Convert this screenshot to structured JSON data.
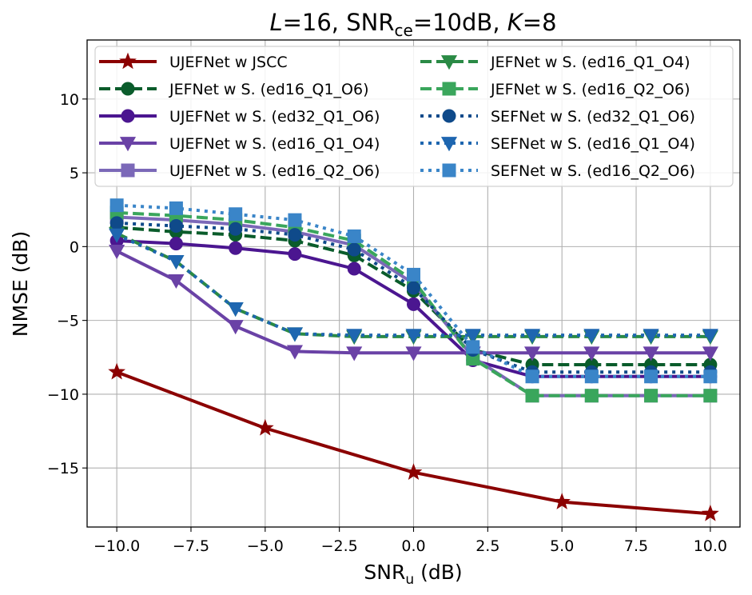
{
  "chart_data": {
    "type": "line",
    "title_parts": {
      "a": "L",
      "b": "=16, SNR",
      "sub": "ce",
      "c": "=10dB, ",
      "d": "K",
      "e": "=8"
    },
    "xlabel": "SNR",
    "xlabel_sub": "u",
    "xlabel_unit": " (dB)",
    "ylabel": "NMSE (dB)",
    "xlim": [
      -11,
      11
    ],
    "ylim": [
      -19,
      14
    ],
    "xticks": [
      -10,
      -7.5,
      -5,
      -2.5,
      0,
      2.5,
      5,
      7.5,
      10
    ],
    "xtick_labels": [
      "−10.0",
      "−7.5",
      "−5.0",
      "−2.5",
      "0.0",
      "2.5",
      "5.0",
      "7.5",
      "10.0"
    ],
    "yticks": [
      -15,
      -10,
      -5,
      0,
      5,
      10
    ],
    "ytick_labels": [
      "−15",
      "−10",
      "−5",
      "0",
      "5",
      "10"
    ],
    "grid": true,
    "legend_placement": "top, two columns",
    "series": [
      {
        "name": "UJEFNet w JSCC",
        "color": "#8b0000",
        "dash": "solid",
        "marker": "star",
        "x": [
          -10,
          -5,
          0,
          5,
          10
        ],
        "y": [
          -8.5,
          -12.3,
          -15.3,
          -17.3,
          -18.1
        ]
      },
      {
        "name": "JEFNet w S. (ed16_Q1_O6)",
        "color": "#0a5c2b",
        "dash": "dashed",
        "marker": "circle",
        "x": [
          -10,
          -8,
          -6,
          -4,
          -2,
          0,
          2,
          4,
          6,
          8,
          10
        ],
        "y": [
          1.3,
          1.0,
          0.8,
          0.4,
          -0.6,
          -3.0,
          -7.0,
          -8.0,
          -8.0,
          -8.0,
          -8.0
        ]
      },
      {
        "name": "UJEFNet w S. (ed32_Q1_O6)",
        "color": "#4b1690",
        "dash": "solid",
        "marker": "circle",
        "x": [
          -10,
          -8,
          -6,
          -4,
          -2,
          0,
          2,
          4,
          6,
          8,
          10
        ],
        "y": [
          0.4,
          0.2,
          -0.1,
          -0.5,
          -1.5,
          -3.9,
          -7.7,
          -8.8,
          -8.8,
          -8.8,
          -8.8
        ]
      },
      {
        "name": "UJEFNet w S. (ed16_Q1_O4)",
        "color": "#6a42a6",
        "dash": "solid",
        "marker": "triangle-down",
        "x": [
          -10,
          -8,
          -6,
          -4,
          -2,
          0,
          2,
          4,
          6,
          8,
          10
        ],
        "y": [
          -0.3,
          -2.3,
          -5.4,
          -7.1,
          -7.2,
          -7.2,
          -7.2,
          -7.2,
          -7.2,
          -7.2,
          -7.2
        ]
      },
      {
        "name": "UJEFNet w S. (ed16_Q2_O6)",
        "color": "#7b68b8",
        "dash": "solid",
        "marker": "square",
        "x": [
          -10,
          -8,
          -6,
          -4,
          -2,
          0,
          2,
          4,
          6,
          8,
          10
        ],
        "y": [
          2.0,
          1.8,
          1.5,
          1.0,
          0.1,
          -2.5,
          -7.5,
          -10.1,
          -10.1,
          -10.1,
          -10.1
        ]
      },
      {
        "name": "JEFNet w S. (ed16_Q1_O4)",
        "color": "#2a8a45",
        "dash": "dashed",
        "marker": "triangle-down",
        "x": [
          -10,
          -8,
          -6,
          -4,
          -2,
          0,
          2,
          4,
          6,
          8,
          10
        ],
        "y": [
          0.9,
          -1.0,
          -4.2,
          -5.9,
          -6.1,
          -6.1,
          -6.1,
          -6.1,
          -6.1,
          -6.1,
          -6.1
        ]
      },
      {
        "name": "JEFNet w S. (ed16_Q2_O6)",
        "color": "#3aa65c",
        "dash": "dashed",
        "marker": "square",
        "x": [
          -10,
          -8,
          -6,
          -4,
          -2,
          0,
          2,
          4,
          6,
          8,
          10
        ],
        "y": [
          2.3,
          2.1,
          1.8,
          1.3,
          0.4,
          -2.3,
          -7.6,
          -10.1,
          -10.1,
          -10.1,
          -10.1
        ]
      },
      {
        "name": "SEFNet w S. (ed32_Q1_O6)",
        "color": "#0f4a8a",
        "dash": "dotted",
        "marker": "circle",
        "x": [
          -10,
          -8,
          -6,
          -4,
          -2,
          0,
          2,
          4,
          6,
          8,
          10
        ],
        "y": [
          1.6,
          1.4,
          1.2,
          0.8,
          -0.2,
          -2.8,
          -7.0,
          -8.5,
          -8.5,
          -8.5,
          -8.5
        ]
      },
      {
        "name": "SEFNet w S. (ed16_Q1_O4)",
        "color": "#1e66b0",
        "dash": "dotted",
        "marker": "triangle-down",
        "x": [
          -10,
          -8,
          -6,
          -4,
          -2,
          0,
          2,
          4,
          6,
          8,
          10
        ],
        "y": [
          0.8,
          -1.0,
          -4.2,
          -5.9,
          -6.0,
          -6.0,
          -6.0,
          -6.0,
          -6.0,
          -6.0,
          -6.0
        ]
      },
      {
        "name": "SEFNet w S. (ed16_Q2_O6)",
        "color": "#3a85c8",
        "dash": "dotted",
        "marker": "square",
        "x": [
          -10,
          -8,
          -6,
          -4,
          -2,
          0,
          2,
          4,
          6,
          8,
          10
        ],
        "y": [
          2.8,
          2.6,
          2.2,
          1.8,
          0.7,
          -1.9,
          -6.8,
          -8.8,
          -8.8,
          -8.8,
          -8.8
        ]
      }
    ]
  }
}
